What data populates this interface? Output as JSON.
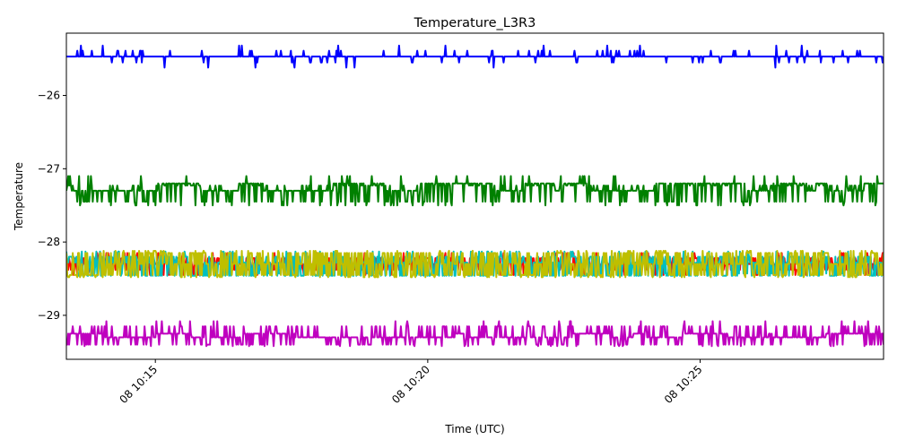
{
  "chart_data": {
    "type": "line",
    "title": "Temperature_L3R3",
    "xlabel": "Time (UTC)",
    "ylabel": "Temperature",
    "x_range": [
      "08 10:13:22",
      "08 10:28:22"
    ],
    "ylim": [
      -29.6,
      -25.15
    ],
    "x_ticks": [
      "08 10:15",
      "08 10:20",
      "08 10:25"
    ],
    "y_ticks": [
      -26,
      -27,
      -28,
      -29
    ],
    "y_tick_labels": [
      "−26",
      "−27",
      "−28",
      "−29"
    ],
    "grid": false,
    "legend": "none",
    "series": [
      {
        "color": "#0000ff",
        "baseline": -25.47,
        "noise": [
          -0.08,
          0.08,
          0.15
        ],
        "spike_prob": 0.12
      },
      {
        "color": "#008000",
        "baseline": -27.3,
        "noise": [
          -0.15,
          0.07,
          0.2
        ],
        "spike_prob": 0.45,
        "alt_level": -27.2
      },
      {
        "color": "#ff0000",
        "baseline": -28.3,
        "noise": [
          -0.08,
          0.08,
          0.15
        ],
        "spike_prob": 0.7
      },
      {
        "color": "#00bfbf",
        "baseline": -28.28,
        "noise": [
          -0.18,
          0.08,
          0.15
        ],
        "spike_prob": 0.7
      },
      {
        "color": "#bfbf00",
        "baseline": -28.3,
        "noise": [
          -0.15,
          0.15,
          0.18
        ],
        "spike_prob": 0.75
      },
      {
        "color": "#bf00bf",
        "baseline": -29.25,
        "noise": [
          -0.15,
          0.1,
          0.17
        ],
        "spike_prob": 0.35,
        "alt_level": -29.3
      }
    ]
  }
}
